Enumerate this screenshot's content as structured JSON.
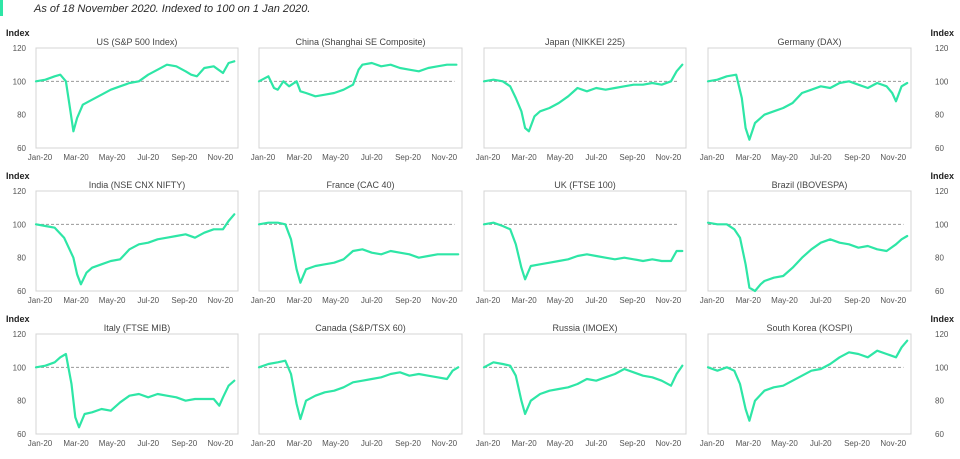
{
  "header": {
    "subtitle": "As of 18 November 2020. Indexed to 100 on 1 Jan 2020."
  },
  "axis_labels": {
    "left": "Index",
    "right": "Index"
  },
  "colors": {
    "line": "#2ee6a6",
    "baseline": "#999999",
    "frame": "#d4d4d4",
    "accent": "#2ee6a6"
  },
  "chart_data": [
    {
      "type": "line",
      "title": "US (S&P 500 Index)",
      "x_ticks": [
        "Jan-20",
        "Mar-20",
        "May-20",
        "Jul-20",
        "Sep-20",
        "Nov-20"
      ],
      "ylim": [
        60,
        120
      ],
      "y_ticks": [
        60,
        80,
        100,
        120
      ],
      "baseline": 100,
      "x_months": [
        0,
        0.5,
        1,
        1.3,
        1.6,
        1.8,
        2,
        2.2,
        2.5,
        3,
        3.5,
        4,
        4.5,
        5,
        5.5,
        6,
        6.5,
        7,
        7.5,
        8,
        8.3,
        8.6,
        9,
        9.5,
        10,
        10.3,
        10.6
      ],
      "values": [
        100,
        101,
        103,
        104,
        100,
        85,
        70,
        78,
        86,
        89,
        92,
        95,
        97,
        99,
        100,
        104,
        107,
        110,
        109,
        106,
        104,
        103,
        108,
        109,
        105,
        111,
        112
      ]
    },
    {
      "type": "line",
      "title": "China (Shanghai SE Composite)",
      "x_ticks": [
        "Jan-20",
        "Mar-20",
        "May-20",
        "Jul-20",
        "Sep-20",
        "Nov-20"
      ],
      "ylim": [
        60,
        120
      ],
      "y_ticks": [
        60,
        80,
        100,
        120
      ],
      "baseline": 100,
      "x_months": [
        0,
        0.5,
        0.8,
        1,
        1.3,
        1.6,
        2,
        2.2,
        2.5,
        3,
        3.5,
        4,
        4.5,
        5,
        5.3,
        5.5,
        6,
        6.5,
        7,
        7.5,
        8,
        8.5,
        9,
        9.5,
        10,
        10.5
      ],
      "values": [
        100,
        103,
        96,
        95,
        100,
        97,
        100,
        94,
        93,
        91,
        92,
        93,
        95,
        98,
        107,
        110,
        111,
        109,
        110,
        108,
        107,
        106,
        108,
        109,
        110,
        110
      ]
    },
    {
      "type": "line",
      "title": "Japan (NIKKEI 225)",
      "x_ticks": [
        "Jan-20",
        "Mar-20",
        "May-20",
        "Jul-20",
        "Sep-20",
        "Nov-20"
      ],
      "ylim": [
        60,
        120
      ],
      "y_ticks": [
        60,
        80,
        100,
        120
      ],
      "baseline": 100,
      "x_months": [
        0,
        0.5,
        1,
        1.4,
        1.7,
        2,
        2.2,
        2.4,
        2.7,
        3,
        3.5,
        4,
        4.5,
        5,
        5.5,
        6,
        6.5,
        7,
        7.5,
        8,
        8.5,
        9,
        9.5,
        10,
        10.3,
        10.6
      ],
      "values": [
        100,
        101,
        100,
        97,
        90,
        82,
        72,
        70,
        79,
        82,
        84,
        87,
        91,
        96,
        94,
        96,
        95,
        96,
        97,
        98,
        98,
        99,
        98,
        100,
        106,
        110
      ]
    },
    {
      "type": "line",
      "title": "Germany (DAX)",
      "x_ticks": [
        "Jan-20",
        "Mar-20",
        "May-20",
        "Jul-20",
        "Sep-20",
        "Nov-20"
      ],
      "ylim": [
        60,
        120
      ],
      "y_ticks": [
        60,
        80,
        100,
        120
      ],
      "baseline": 100,
      "x_months": [
        0,
        0.5,
        1,
        1.5,
        1.8,
        2,
        2.2,
        2.5,
        3,
        3.5,
        4,
        4.5,
        5,
        5.5,
        6,
        6.5,
        7,
        7.5,
        8,
        8.5,
        9,
        9.5,
        9.8,
        10,
        10.3,
        10.6
      ],
      "values": [
        100,
        101,
        103,
        104,
        90,
        72,
        65,
        75,
        80,
        82,
        84,
        87,
        93,
        95,
        97,
        96,
        99,
        100,
        98,
        96,
        99,
        97,
        93,
        88,
        97,
        99
      ]
    },
    {
      "type": "line",
      "title": "India (NSE CNX NIFTY)",
      "x_ticks": [
        "Jan-20",
        "Mar-20",
        "May-20",
        "Jul-20",
        "Sep-20",
        "Nov-20"
      ],
      "ylim": [
        60,
        120
      ],
      "y_ticks": [
        60,
        80,
        100,
        120
      ],
      "baseline": 100,
      "x_months": [
        0,
        0.5,
        1,
        1.5,
        2,
        2.2,
        2.4,
        2.7,
        3,
        3.5,
        4,
        4.5,
        5,
        5.5,
        6,
        6.5,
        7,
        7.5,
        8,
        8.5,
        9,
        9.5,
        10,
        10.3,
        10.6
      ],
      "values": [
        100,
        99,
        98,
        92,
        80,
        70,
        64,
        71,
        74,
        76,
        78,
        79,
        85,
        88,
        89,
        91,
        92,
        93,
        94,
        92,
        95,
        97,
        97,
        102,
        106
      ]
    },
    {
      "type": "line",
      "title": "France (CAC 40)",
      "x_ticks": [
        "Jan-20",
        "Mar-20",
        "May-20",
        "Jul-20",
        "Sep-20",
        "Nov-20"
      ],
      "ylim": [
        60,
        120
      ],
      "y_ticks": [
        60,
        80,
        100,
        120
      ],
      "baseline": 100,
      "x_months": [
        0,
        0.5,
        1,
        1.4,
        1.7,
        2,
        2.2,
        2.5,
        3,
        3.5,
        4,
        4.5,
        5,
        5.5,
        6,
        6.5,
        7,
        7.5,
        8,
        8.5,
        9,
        9.5,
        10,
        10.6
      ],
      "values": [
        100,
        101,
        101,
        100,
        91,
        73,
        65,
        73,
        75,
        76,
        77,
        79,
        84,
        85,
        83,
        82,
        84,
        83,
        82,
        80,
        81,
        82,
        82,
        82
      ]
    },
    {
      "type": "line",
      "title": "UK (FTSE 100)",
      "x_ticks": [
        "Jan-20",
        "Mar-20",
        "May-20",
        "Jul-20",
        "Sep-20",
        "Nov-20"
      ],
      "ylim": [
        60,
        120
      ],
      "y_ticks": [
        60,
        80,
        100,
        120
      ],
      "baseline": 100,
      "x_months": [
        0,
        0.5,
        1,
        1.4,
        1.7,
        2,
        2.2,
        2.5,
        3,
        3.5,
        4,
        4.5,
        5,
        5.5,
        6,
        6.5,
        7,
        7.5,
        8,
        8.5,
        9,
        9.5,
        10,
        10.3,
        10.6
      ],
      "values": [
        100,
        101,
        99,
        97,
        88,
        74,
        67,
        75,
        76,
        77,
        78,
        79,
        81,
        82,
        81,
        80,
        79,
        80,
        79,
        78,
        79,
        78,
        78,
        84,
        84
      ]
    },
    {
      "type": "line",
      "title": "Brazil (IBOVESPA)",
      "x_ticks": [
        "Jan-20",
        "Mar-20",
        "May-20",
        "Jul-20",
        "Sep-20",
        "Nov-20"
      ],
      "ylim": [
        60,
        120
      ],
      "y_ticks": [
        60,
        80,
        100,
        120
      ],
      "baseline": 100,
      "x_months": [
        0,
        0.5,
        1,
        1.4,
        1.7,
        2,
        2.2,
        2.5,
        2.8,
        3,
        3.5,
        4,
        4.5,
        5,
        5.5,
        6,
        6.5,
        7,
        7.5,
        8,
        8.5,
        9,
        9.5,
        10,
        10.3,
        10.6
      ],
      "values": [
        101,
        100,
        100,
        97,
        92,
        76,
        62,
        60,
        64,
        66,
        68,
        69,
        74,
        80,
        85,
        89,
        91,
        89,
        88,
        86,
        87,
        85,
        84,
        88,
        91,
        93
      ]
    },
    {
      "type": "line",
      "title": "Italy (FTSE MIB)",
      "x_ticks": [
        "Jan-20",
        "Mar-20",
        "May-20",
        "Jul-20",
        "Sep-20",
        "Nov-20"
      ],
      "ylim": [
        60,
        120
      ],
      "y_ticks": [
        60,
        80,
        100,
        120
      ],
      "baseline": 100,
      "x_months": [
        0,
        0.5,
        1,
        1.3,
        1.6,
        1.9,
        2.1,
        2.3,
        2.6,
        3,
        3.5,
        4,
        4.5,
        5,
        5.5,
        6,
        6.5,
        7,
        7.5,
        8,
        8.5,
        9,
        9.5,
        9.8,
        10,
        10.3,
        10.6
      ],
      "values": [
        100,
        101,
        103,
        106,
        108,
        90,
        70,
        64,
        72,
        73,
        75,
        74,
        79,
        83,
        84,
        82,
        84,
        83,
        82,
        80,
        81,
        81,
        81,
        77,
        82,
        89,
        92
      ]
    },
    {
      "type": "line",
      "title": "Canada (S&P/TSX 60)",
      "x_ticks": [
        "Jan-20",
        "Mar-20",
        "May-20",
        "Jul-20",
        "Sep-20",
        "Nov-20"
      ],
      "ylim": [
        60,
        120
      ],
      "y_ticks": [
        60,
        80,
        100,
        120
      ],
      "baseline": 100,
      "x_months": [
        0,
        0.5,
        1,
        1.4,
        1.7,
        2,
        2.2,
        2.5,
        3,
        3.5,
        4,
        4.5,
        5,
        5.5,
        6,
        6.5,
        7,
        7.5,
        8,
        8.5,
        9,
        9.5,
        10,
        10.3,
        10.6
      ],
      "values": [
        100,
        102,
        103,
        104,
        96,
        78,
        69,
        80,
        83,
        85,
        86,
        88,
        91,
        92,
        93,
        94,
        96,
        97,
        95,
        96,
        95,
        94,
        93,
        98,
        100
      ]
    },
    {
      "type": "line",
      "title": "Russia (IMOEX)",
      "x_ticks": [
        "Jan-20",
        "Mar-20",
        "May-20",
        "Jul-20",
        "Sep-20",
        "Nov-20"
      ],
      "ylim": [
        60,
        120
      ],
      "y_ticks": [
        60,
        80,
        100,
        120
      ],
      "baseline": 100,
      "x_months": [
        0,
        0.5,
        1,
        1.4,
        1.7,
        2,
        2.2,
        2.5,
        3,
        3.5,
        4,
        4.5,
        5,
        5.5,
        6,
        6.5,
        7,
        7.5,
        8,
        8.5,
        9,
        9.5,
        10,
        10.3,
        10.6
      ],
      "values": [
        100,
        103,
        102,
        101,
        95,
        80,
        72,
        80,
        84,
        86,
        87,
        88,
        90,
        93,
        92,
        94,
        96,
        99,
        97,
        95,
        94,
        92,
        89,
        96,
        101
      ]
    },
    {
      "type": "line",
      "title": "South Korea (KOSPI)",
      "x_ticks": [
        "Jan-20",
        "Mar-20",
        "May-20",
        "Jul-20",
        "Sep-20",
        "Nov-20"
      ],
      "ylim": [
        60,
        120
      ],
      "y_ticks": [
        60,
        80,
        100,
        120
      ],
      "baseline": 100,
      "x_months": [
        0,
        0.5,
        1,
        1.4,
        1.7,
        2,
        2.2,
        2.5,
        3,
        3.5,
        4,
        4.5,
        5,
        5.5,
        6,
        6.5,
        7,
        7.5,
        8,
        8.5,
        9,
        9.5,
        10,
        10.3,
        10.6
      ],
      "values": [
        100,
        98,
        100,
        98,
        90,
        75,
        68,
        80,
        86,
        88,
        89,
        92,
        95,
        98,
        99,
        102,
        106,
        109,
        108,
        106,
        110,
        108,
        106,
        112,
        116
      ]
    }
  ]
}
